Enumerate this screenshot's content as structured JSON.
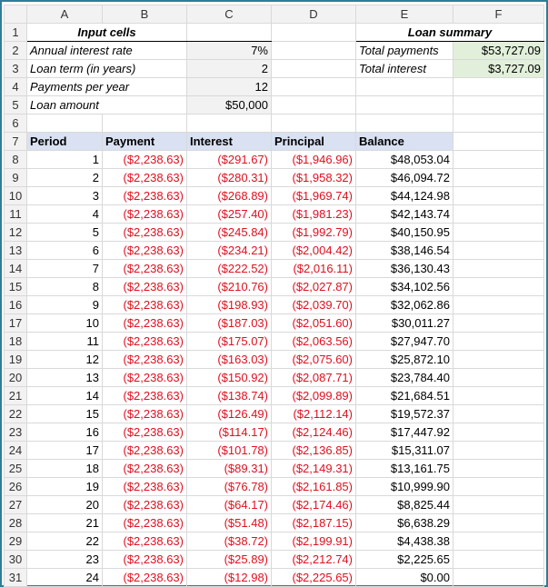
{
  "columns": [
    "A",
    "B",
    "C",
    "D",
    "E",
    "F"
  ],
  "input_title": "Input cells",
  "summary_title": "Loan summary",
  "inputs": [
    {
      "label": "Annual interest rate",
      "value": "7%"
    },
    {
      "label": "Loan term (in years)",
      "value": "2"
    },
    {
      "label": "Payments per year",
      "value": "12"
    },
    {
      "label": "Loan amount",
      "value": "$50,000"
    }
  ],
  "summary": [
    {
      "label": "Total payments",
      "value": "$53,727.09"
    },
    {
      "label": "Total interest",
      "value": "$3,727.09"
    }
  ],
  "table_headers": [
    "Period",
    "Payment",
    "Interest",
    "Principal",
    "Balance"
  ],
  "rows": [
    [
      "1",
      "($2,238.63)",
      "($291.67)",
      "($1,946.96)",
      "$48,053.04"
    ],
    [
      "2",
      "($2,238.63)",
      "($280.31)",
      "($1,958.32)",
      "$46,094.72"
    ],
    [
      "3",
      "($2,238.63)",
      "($268.89)",
      "($1,969.74)",
      "$44,124.98"
    ],
    [
      "4",
      "($2,238.63)",
      "($257.40)",
      "($1,981.23)",
      "$42,143.74"
    ],
    [
      "5",
      "($2,238.63)",
      "($245.84)",
      "($1,992.79)",
      "$40,150.95"
    ],
    [
      "6",
      "($2,238.63)",
      "($234.21)",
      "($2,004.42)",
      "$38,146.54"
    ],
    [
      "7",
      "($2,238.63)",
      "($222.52)",
      "($2,016.11)",
      "$36,130.43"
    ],
    [
      "8",
      "($2,238.63)",
      "($210.76)",
      "($2,027.87)",
      "$34,102.56"
    ],
    [
      "9",
      "($2,238.63)",
      "($198.93)",
      "($2,039.70)",
      "$32,062.86"
    ],
    [
      "10",
      "($2,238.63)",
      "($187.03)",
      "($2,051.60)",
      "$30,011.27"
    ],
    [
      "11",
      "($2,238.63)",
      "($175.07)",
      "($2,063.56)",
      "$27,947.70"
    ],
    [
      "12",
      "($2,238.63)",
      "($163.03)",
      "($2,075.60)",
      "$25,872.10"
    ],
    [
      "13",
      "($2,238.63)",
      "($150.92)",
      "($2,087.71)",
      "$23,784.40"
    ],
    [
      "14",
      "($2,238.63)",
      "($138.74)",
      "($2,099.89)",
      "$21,684.51"
    ],
    [
      "15",
      "($2,238.63)",
      "($126.49)",
      "($2,112.14)",
      "$19,572.37"
    ],
    [
      "16",
      "($2,238.63)",
      "($114.17)",
      "($2,124.46)",
      "$17,447.92"
    ],
    [
      "17",
      "($2,238.63)",
      "($101.78)",
      "($2,136.85)",
      "$15,311.07"
    ],
    [
      "18",
      "($2,238.63)",
      "($89.31)",
      "($2,149.31)",
      "$13,161.75"
    ],
    [
      "19",
      "($2,238.63)",
      "($76.78)",
      "($2,161.85)",
      "$10,999.90"
    ],
    [
      "20",
      "($2,238.63)",
      "($64.17)",
      "($2,174.46)",
      "$8,825.44"
    ],
    [
      "21",
      "($2,238.63)",
      "($51.48)",
      "($2,187.15)",
      "$6,638.29"
    ],
    [
      "22",
      "($2,238.63)",
      "($38.72)",
      "($2,199.91)",
      "$4,438.38"
    ],
    [
      "23",
      "($2,238.63)",
      "($25.89)",
      "($2,212.74)",
      "$2,225.65"
    ],
    [
      "24",
      "($2,238.63)",
      "($12.98)",
      "($2,225.65)",
      "$0.00"
    ]
  ],
  "colors": {
    "negative": "#e0101f",
    "input_fill": "#f2f2f2",
    "summary_fill": "#e2efda",
    "header_fill": "#d9e1f2",
    "frame": "#2e7d9a"
  }
}
